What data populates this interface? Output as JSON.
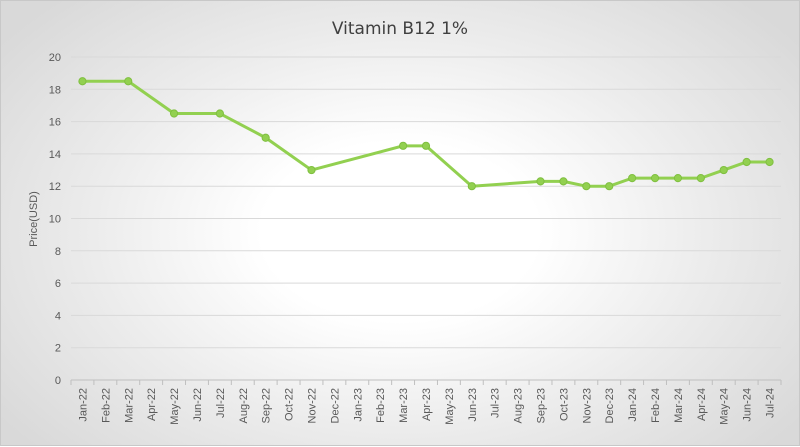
{
  "chart_data": {
    "type": "line",
    "title": "Vitamin B12 1%",
    "xlabel": "",
    "ylabel": "Price(USD)",
    "ylim": [
      0,
      20
    ],
    "yticks": [
      0,
      2,
      4,
      6,
      8,
      10,
      12,
      14,
      16,
      18,
      20
    ],
    "grid": true,
    "legend": "none",
    "line_color": "#92d050",
    "categories": [
      "Jan-22",
      "Feb-22",
      "Mar-22",
      "Apr-22",
      "May-22",
      "Jun-22",
      "Jul-22",
      "Aug-22",
      "Sep-22",
      "Oct-22",
      "Nov-22",
      "Dec-22",
      "Jan-23",
      "Feb-23",
      "Mar-23",
      "Apr-23",
      "May-23",
      "Jun-23",
      "Jul-23",
      "Aug-23",
      "Sep-23",
      "Oct-23",
      "Nov-23",
      "Dec-23",
      "Jan-24",
      "Feb-24",
      "Mar-24",
      "Apr-24",
      "May-24",
      "Jun-24",
      "Jul-24"
    ],
    "series": [
      {
        "values": [
          18.5,
          null,
          18.5,
          null,
          16.5,
          null,
          16.5,
          null,
          15.0,
          null,
          13.0,
          null,
          null,
          null,
          14.5,
          14.5,
          null,
          12.0,
          null,
          null,
          12.3,
          12.3,
          12.0,
          12.0,
          12.5,
          12.5,
          12.5,
          12.5,
          13.0,
          13.5,
          13.5
        ]
      }
    ]
  }
}
